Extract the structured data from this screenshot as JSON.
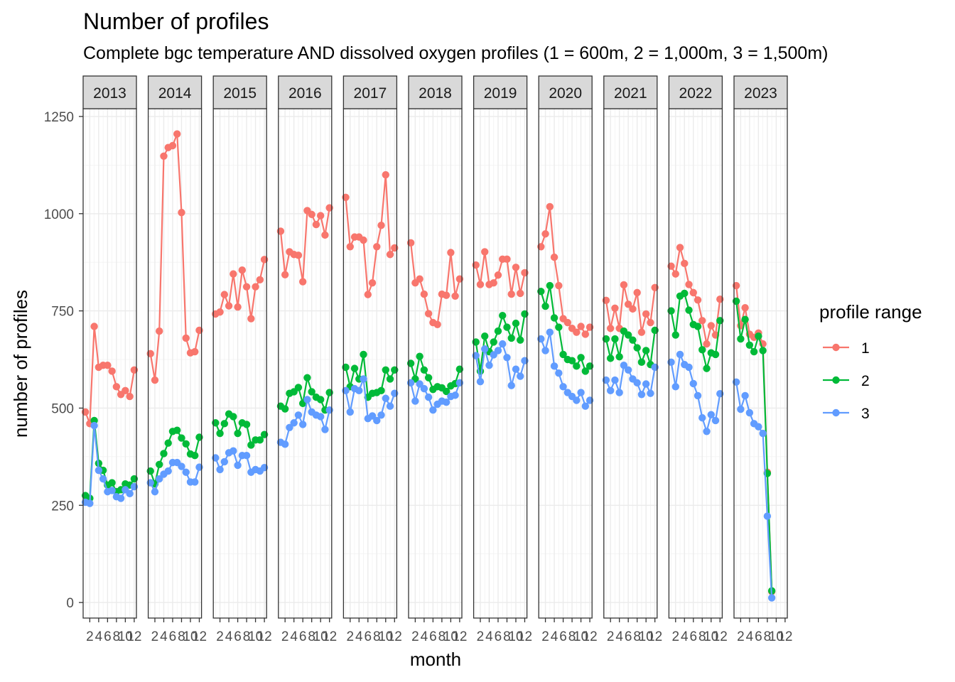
{
  "chart_data": {
    "type": "line",
    "title": "Number of profiles",
    "subtitle": "Complete bgc temperature AND dissolved oxygen profiles (1 = 600m, 2 = 1,000m, 3 = 1,500m)",
    "xlabel": "month",
    "ylabel": "number of profiles",
    "ylim": [
      -40,
      1270
    ],
    "y_ticks": [
      0,
      250,
      500,
      750,
      1000,
      1250
    ],
    "x_ticks": [
      2,
      4,
      6,
      8,
      10,
      12
    ],
    "x_range": [
      0.5,
      12.5
    ],
    "grid": true,
    "legend": {
      "title": "profile range",
      "placement": "right"
    },
    "facets": [
      "2013",
      "2014",
      "2015",
      "2016",
      "2017",
      "2018",
      "2019",
      "2020",
      "2021",
      "2022",
      "2023"
    ],
    "series": [
      {
        "name": "1",
        "color": "#F8766D",
        "values": {
          "2013": [
            490,
            460,
            710,
            605,
            610,
            610,
            595,
            555,
            535,
            545,
            530,
            598
          ],
          "2014": [
            640,
            572,
            698,
            1148,
            1170,
            1175,
            1205,
            1003,
            680,
            642,
            645,
            700
          ],
          "2015": [
            742,
            747,
            792,
            763,
            845,
            760,
            855,
            812,
            730,
            812,
            830,
            882
          ],
          "2016": [
            955,
            843,
            902,
            895,
            893,
            825,
            1008,
            998,
            972,
            995,
            945,
            1015
          ],
          "2017": [
            1042,
            915,
            940,
            940,
            932,
            792,
            822,
            915,
            970,
            1100,
            895,
            912
          ],
          "2018": [
            925,
            822,
            832,
            793,
            743,
            720,
            715,
            793,
            790,
            900,
            788,
            832
          ],
          "2019": [
            868,
            818,
            902,
            818,
            822,
            842,
            883,
            883,
            793,
            862,
            795,
            848
          ],
          "2020": [
            915,
            948,
            1018,
            888,
            815,
            730,
            720,
            705,
            695,
            710,
            690,
            708
          ],
          "2021": [
            777,
            705,
            757,
            705,
            817,
            767,
            755,
            797,
            695,
            742,
            720,
            810
          ],
          "2022": [
            865,
            845,
            913,
            872,
            818,
            797,
            778,
            725,
            665,
            712,
            688,
            780
          ],
          "2023": [
            815,
            712,
            758,
            690,
            682,
            693,
            665,
            335,
            28
          ]
        }
      },
      {
        "name": "2",
        "color": "#00BA38",
        "values": {
          "2013": [
            275,
            268,
            468,
            358,
            340,
            302,
            308,
            285,
            290,
            305,
            302,
            318
          ],
          "2014": [
            338,
            305,
            355,
            383,
            410,
            440,
            443,
            423,
            408,
            382,
            378,
            425
          ],
          "2015": [
            462,
            435,
            460,
            485,
            478,
            435,
            462,
            458,
            405,
            418,
            418,
            432
          ],
          "2016": [
            505,
            498,
            538,
            542,
            553,
            512,
            578,
            542,
            528,
            522,
            495,
            540
          ],
          "2017": [
            605,
            555,
            602,
            575,
            638,
            528,
            538,
            540,
            545,
            598,
            575,
            598
          ],
          "2018": [
            615,
            575,
            633,
            598,
            578,
            548,
            555,
            552,
            543,
            557,
            563,
            600
          ],
          "2019": [
            670,
            595,
            685,
            645,
            670,
            698,
            738,
            708,
            680,
            718,
            675,
            742
          ],
          "2020": [
            800,
            762,
            815,
            732,
            708,
            638,
            625,
            622,
            608,
            630,
            595,
            608
          ],
          "2021": [
            678,
            628,
            678,
            632,
            698,
            688,
            675,
            655,
            618,
            648,
            612,
            700
          ],
          "2022": [
            750,
            688,
            788,
            795,
            752,
            715,
            710,
            650,
            602,
            642,
            638,
            725
          ],
          "2023": [
            775,
            678,
            728,
            662,
            645,
            685,
            648,
            332,
            30
          ]
        }
      },
      {
        "name": "3",
        "color": "#619CFF",
        "values": {
          "2013": [
            258,
            255,
            455,
            340,
            318,
            285,
            288,
            272,
            268,
            290,
            280,
            298
          ],
          "2014": [
            308,
            285,
            318,
            330,
            338,
            360,
            360,
            350,
            335,
            310,
            310,
            348
          ],
          "2015": [
            372,
            342,
            362,
            385,
            390,
            353,
            378,
            378,
            335,
            342,
            338,
            347
          ],
          "2016": [
            412,
            407,
            450,
            462,
            482,
            458,
            522,
            490,
            482,
            478,
            445,
            495
          ],
          "2017": [
            545,
            490,
            550,
            545,
            575,
            473,
            480,
            468,
            482,
            525,
            505,
            538
          ],
          "2018": [
            565,
            518,
            562,
            550,
            528,
            495,
            510,
            518,
            515,
            530,
            533,
            565
          ],
          "2019": [
            635,
            568,
            652,
            610,
            637,
            648,
            665,
            630,
            558,
            600,
            582,
            622
          ],
          "2020": [
            678,
            648,
            695,
            608,
            590,
            555,
            540,
            530,
            520,
            540,
            505,
            520
          ],
          "2021": [
            572,
            545,
            572,
            540,
            610,
            598,
            575,
            565,
            535,
            562,
            538,
            605
          ],
          "2022": [
            618,
            555,
            638,
            612,
            605,
            563,
            532,
            475,
            440,
            483,
            468,
            537
          ],
          "2023": [
            567,
            497,
            532,
            488,
            460,
            452,
            435,
            222,
            12
          ]
        }
      }
    ]
  }
}
